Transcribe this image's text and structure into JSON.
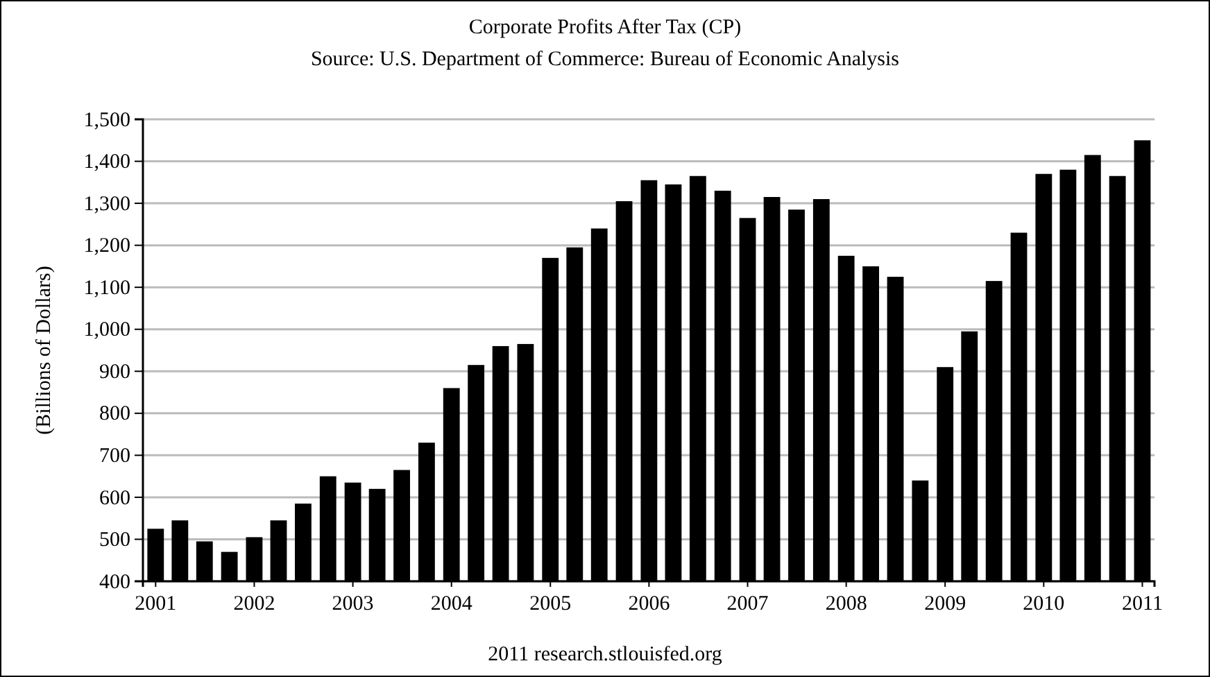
{
  "chart_data": {
    "type": "bar",
    "title": "Corporate Profits After Tax (CP)",
    "subtitle": "Source: U.S. Department of Commerce: Bureau of Economic Analysis",
    "ylabel": "(Billions of Dollars)",
    "annotations": [
      "2011 research.stlouisfed.org"
    ],
    "x": [
      "2001-01",
      "2001-04",
      "2001-07",
      "2001-10",
      "2002-01",
      "2002-04",
      "2002-07",
      "2002-10",
      "2003-01",
      "2003-04",
      "2003-07",
      "2003-10",
      "2004-01",
      "2004-04",
      "2004-07",
      "2004-10",
      "2005-01",
      "2005-04",
      "2005-07",
      "2005-10",
      "2006-01",
      "2006-04",
      "2006-07",
      "2006-10",
      "2007-01",
      "2007-04",
      "2007-07",
      "2007-10",
      "2008-01",
      "2008-04",
      "2008-07",
      "2008-10",
      "2009-01",
      "2009-04",
      "2009-07",
      "2009-10",
      "2010-01",
      "2010-04",
      "2010-07",
      "2010-10",
      "2011-01"
    ],
    "values": [
      525,
      545,
      495,
      470,
      505,
      545,
      585,
      650,
      635,
      620,
      665,
      730,
      860,
      915,
      960,
      965,
      1170,
      1195,
      1240,
      1305,
      1355,
      1345,
      1365,
      1330,
      1265,
      1315,
      1285,
      1310,
      1175,
      1150,
      1125,
      640,
      910,
      995,
      1115,
      1230,
      1370,
      1380,
      1415,
      1365,
      1450
    ],
    "color": "#000000",
    "xlim": [
      "2000-11-15",
      "2011-02-15"
    ],
    "xticks": [
      "2001",
      "2002",
      "2003",
      "2004",
      "2005",
      "2006",
      "2007",
      "2008",
      "2009",
      "2010",
      "2011"
    ],
    "ylim": [
      400,
      1500
    ],
    "yticks": [
      {
        "value": 400,
        "label": "400"
      },
      {
        "value": 500,
        "label": "500"
      },
      {
        "value": 600,
        "label": "600"
      },
      {
        "value": 700,
        "label": "700"
      },
      {
        "value": 800,
        "label": "800"
      },
      {
        "value": 900,
        "label": "900"
      },
      {
        "value": 1000,
        "label": "1,000"
      },
      {
        "value": 1100,
        "label": "1,100"
      },
      {
        "value": 1200,
        "label": "1,200"
      },
      {
        "value": 1300,
        "label": "1,300"
      },
      {
        "value": 1400,
        "label": "1,400"
      },
      {
        "value": 1500,
        "label": "1,500"
      }
    ],
    "grid": "y"
  }
}
